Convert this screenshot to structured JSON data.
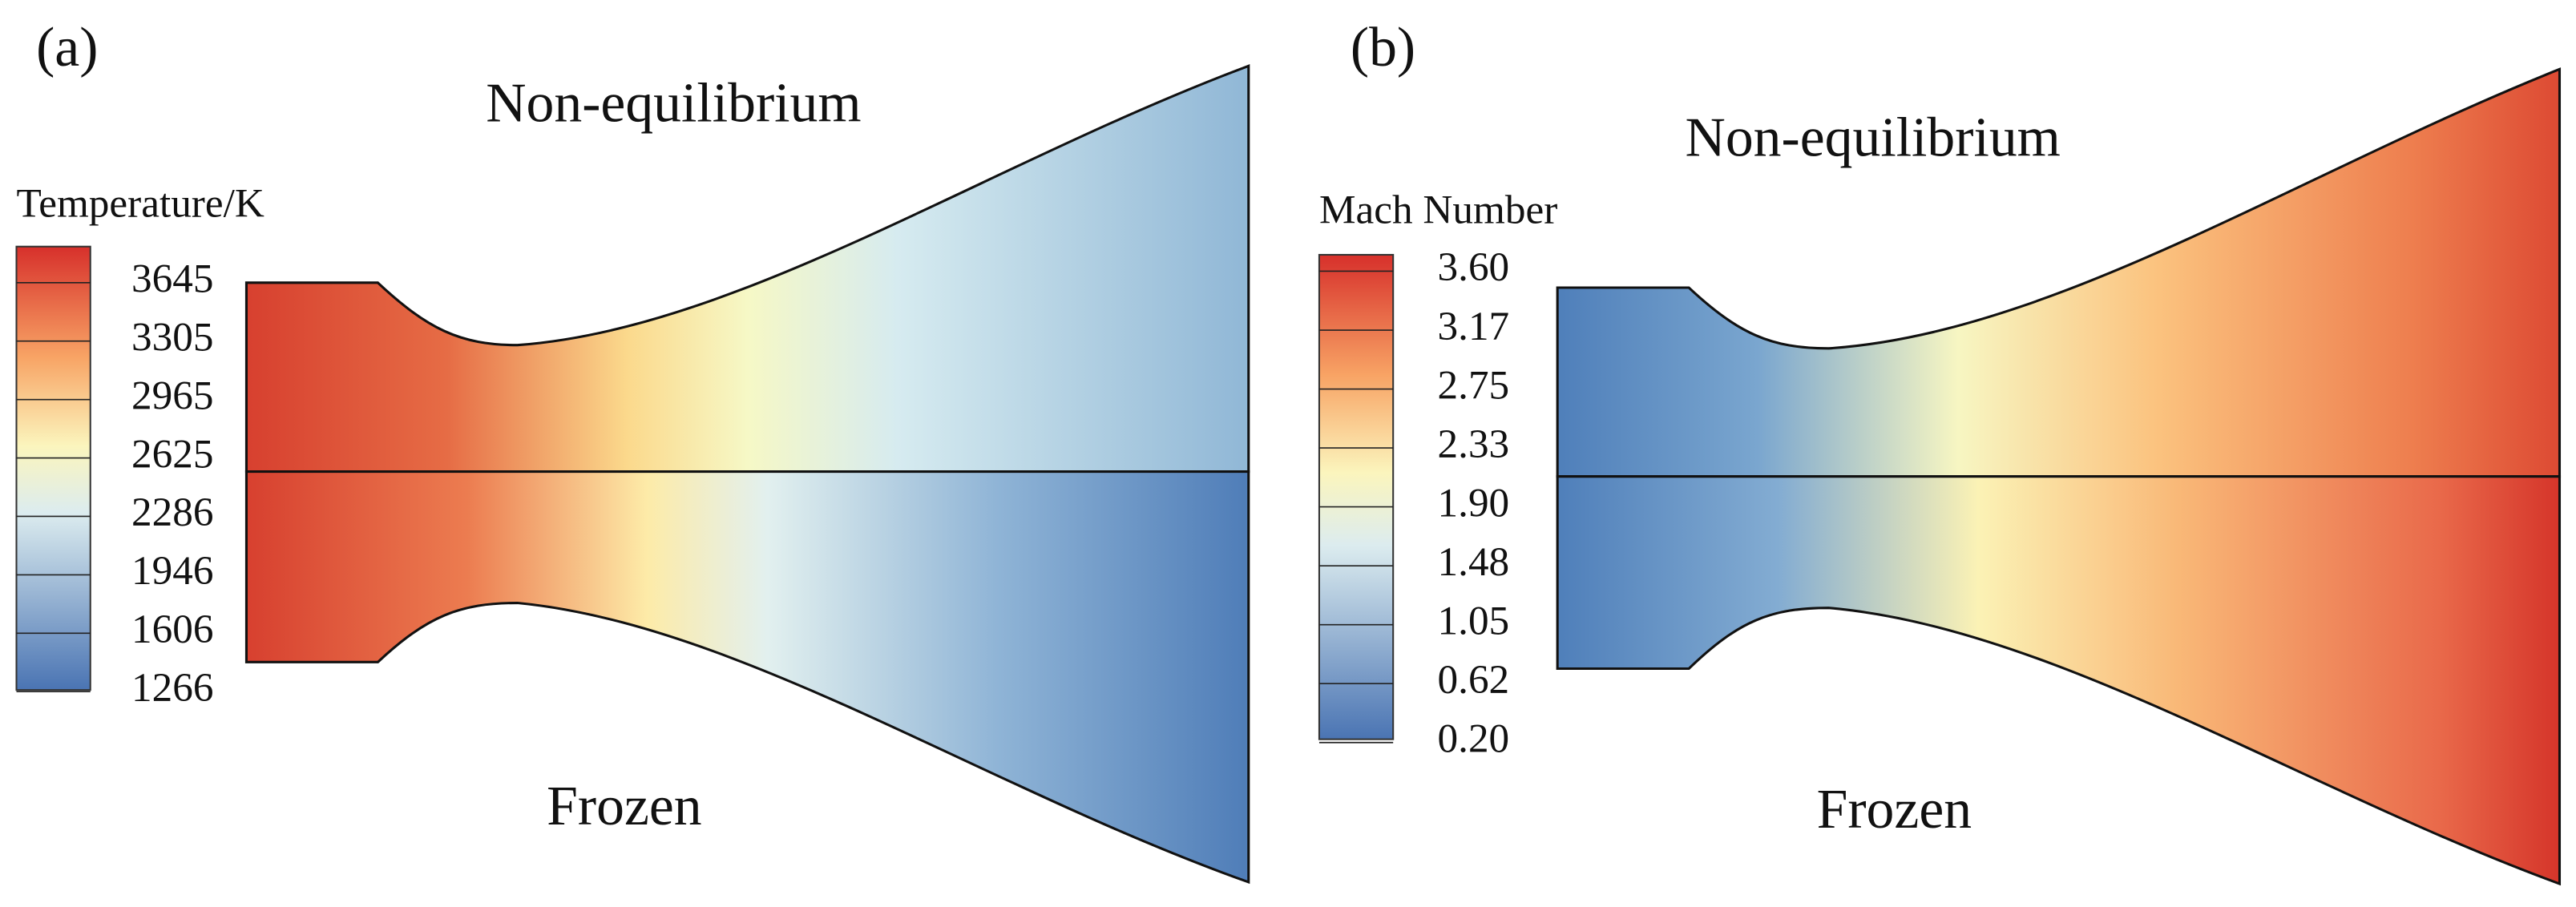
{
  "panels": [
    {
      "label": "(a)",
      "top_label": "Non-equilibrium",
      "bottom_label": "Frozen",
      "colorbar": {
        "title": "Temperature/K",
        "ticks": [
          "3645",
          "3305",
          "2965",
          "2625",
          "2286",
          "1946",
          "1606",
          "1266"
        ]
      }
    },
    {
      "label": "(b)",
      "top_label": "Non-equilibrium",
      "bottom_label": "Frozen",
      "colorbar": {
        "title": "Mach Number",
        "ticks": [
          "3.60",
          "3.17",
          "2.75",
          "2.33",
          "1.90",
          "1.48",
          "1.05",
          "0.62",
          "0.20"
        ]
      }
    }
  ]
}
